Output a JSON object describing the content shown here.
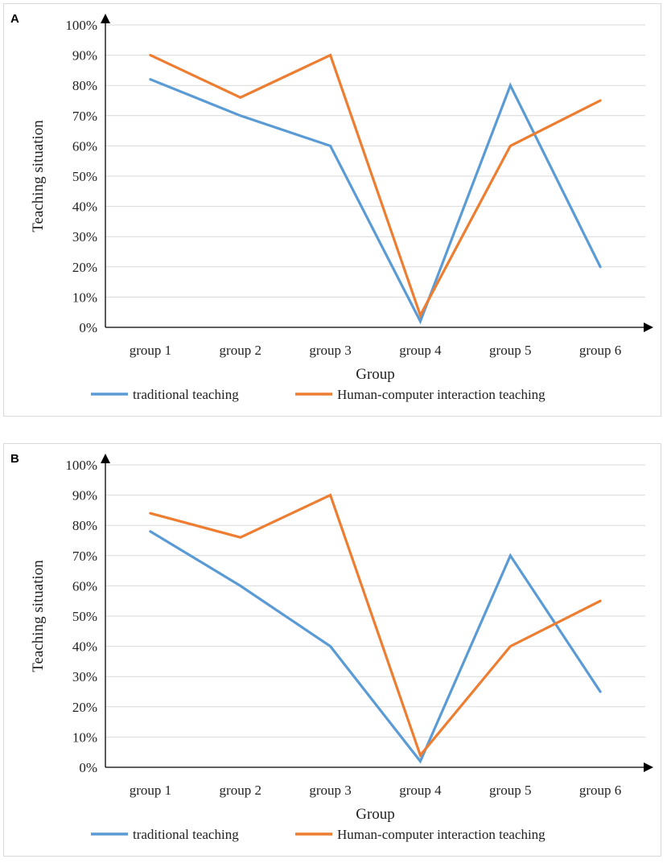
{
  "chart_data": [
    {
      "type": "line",
      "panel_label": "A",
      "categories": [
        "group 1",
        "group 2",
        "group 3",
        "group 4",
        "group 5",
        "group 6"
      ],
      "series": [
        {
          "name": "traditional teaching",
          "color": "#5b9bd5",
          "values": [
            0.82,
            0.7,
            0.6,
            0.02,
            0.8,
            0.2
          ]
        },
        {
          "name": "Human-computer interaction teaching",
          "color": "#ed7d31",
          "values": [
            0.9,
            0.76,
            0.9,
            0.04,
            0.6,
            0.75
          ]
        }
      ],
      "xlabel": "Group",
      "ylabel": "Teaching situation",
      "ylim": [
        0,
        1
      ],
      "yticks": [
        "0%",
        "10%",
        "20%",
        "30%",
        "40%",
        "50%",
        "60%",
        "70%",
        "80%",
        "90%",
        "100%"
      ],
      "grid": true,
      "legend_position": "bottom"
    },
    {
      "type": "line",
      "panel_label": "B",
      "categories": [
        "group 1",
        "group 2",
        "group 3",
        "group 4",
        "group 5",
        "group 6"
      ],
      "series": [
        {
          "name": "traditional teaching",
          "color": "#5b9bd5",
          "values": [
            0.78,
            0.6,
            0.4,
            0.02,
            0.7,
            0.25
          ]
        },
        {
          "name": "Human-computer interaction teaching",
          "color": "#ed7d31",
          "values": [
            0.84,
            0.76,
            0.9,
            0.04,
            0.4,
            0.55
          ]
        }
      ],
      "xlabel": "Group",
      "ylabel": "Teaching situation",
      "ylim": [
        0,
        1
      ],
      "yticks": [
        "0%",
        "10%",
        "20%",
        "30%",
        "40%",
        "50%",
        "60%",
        "70%",
        "80%",
        "90%",
        "100%"
      ],
      "grid": true,
      "legend_position": "bottom"
    }
  ]
}
